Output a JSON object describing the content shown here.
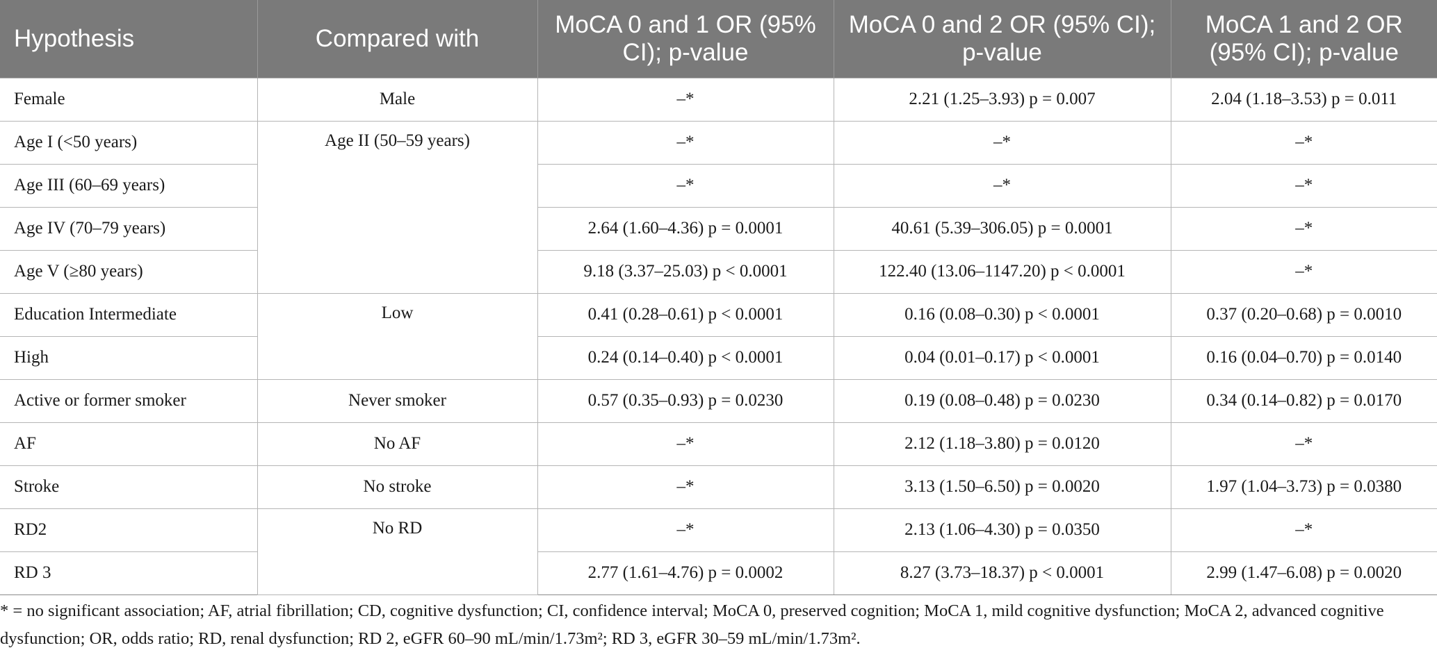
{
  "table": {
    "headers": [
      "Hypothesis",
      "Compared with",
      "MoCA 0 and 1 OR (95% CI); p-value",
      "MoCA 0 and 2 OR (95% CI); p-value",
      "MoCA 1 and 2 OR (95% CI); p-value"
    ],
    "rows": [
      {
        "hypothesis": "Female",
        "c1": "–*",
        "c2": "2.21 (1.25–3.93) p = 0.007",
        "c3": "2.04 (1.18–3.53) p = 0.011"
      },
      {
        "hypothesis": "Age I (<50 years)",
        "c1": "–*",
        "c2": "–*",
        "c3": "–*"
      },
      {
        "hypothesis": "Age III (60–69 years)",
        "c1": "–*",
        "c2": "–*",
        "c3": "–*"
      },
      {
        "hypothesis": "Age IV (70–79 years)",
        "c1": "2.64 (1.60–4.36) p = 0.0001",
        "c2": "40.61 (5.39–306.05) p = 0.0001",
        "c3": "–*"
      },
      {
        "hypothesis": "Age V (≥80 years)",
        "c1": "9.18 (3.37–25.03) p < 0.0001",
        "c2": "122.40 (13.06–1147.20) p < 0.0001",
        "c3": "–*"
      },
      {
        "hypothesis": "Education Intermediate",
        "c1": "0.41 (0.28–0.61) p < 0.0001",
        "c2": "0.16 (0.08–0.30) p < 0.0001",
        "c3": "0.37 (0.20–0.68) p = 0.0010"
      },
      {
        "hypothesis": "High",
        "c1": "0.24 (0.14–0.40) p < 0.0001",
        "c2": "0.04 (0.01–0.17) p < 0.0001",
        "c3": "0.16 (0.04–0.70) p = 0.0140"
      },
      {
        "hypothesis": "Active or former smoker",
        "c1": "0.57 (0.35–0.93) p = 0.0230",
        "c2": "0.19 (0.08–0.48) p = 0.0230",
        "c3": "0.34 (0.14–0.82) p = 0.0170"
      },
      {
        "hypothesis": "AF",
        "c1": "–*",
        "c2": "2.12 (1.18–3.80) p = 0.0120",
        "c3": "–*"
      },
      {
        "hypothesis": "Stroke",
        "c1": "–*",
        "c2": "3.13 (1.50–6.50) p = 0.0020",
        "c3": "1.97 (1.04–3.73) p = 0.0380"
      },
      {
        "hypothesis": "RD2",
        "c1": "–*",
        "c2": "2.13 (1.06–4.30) p = 0.0350",
        "c3": "–*"
      },
      {
        "hypothesis": "RD 3",
        "c1": "2.77 (1.61–4.76) p = 0.0002",
        "c2": "8.27 (3.73–18.37) p < 0.0001",
        "c3": "2.99 (1.47–6.08) p = 0.0020"
      }
    ],
    "compared_with": [
      "Male",
      "Age II (50–59 years)",
      "Low",
      "Never smoker",
      "No AF",
      "No stroke",
      "No RD"
    ]
  },
  "footnote": "* = no significant association; AF, atrial fibrillation; CD, cognitive dysfunction; CI, confidence interval; MoCA 0, preserved cognition; MoCA 1, mild cognitive dysfunction; MoCA 2, advanced cognitive dysfunction; OR, odds ratio; RD, renal dysfunction; RD 2, eGFR 60–90 mL/min/1.73m²; RD 3, eGFR 30–59 mL/min/1.73m².",
  "colors": {
    "header_bg": "#7a7a7a",
    "header_text": "#ffffff",
    "grid": "#b5b5b5"
  }
}
